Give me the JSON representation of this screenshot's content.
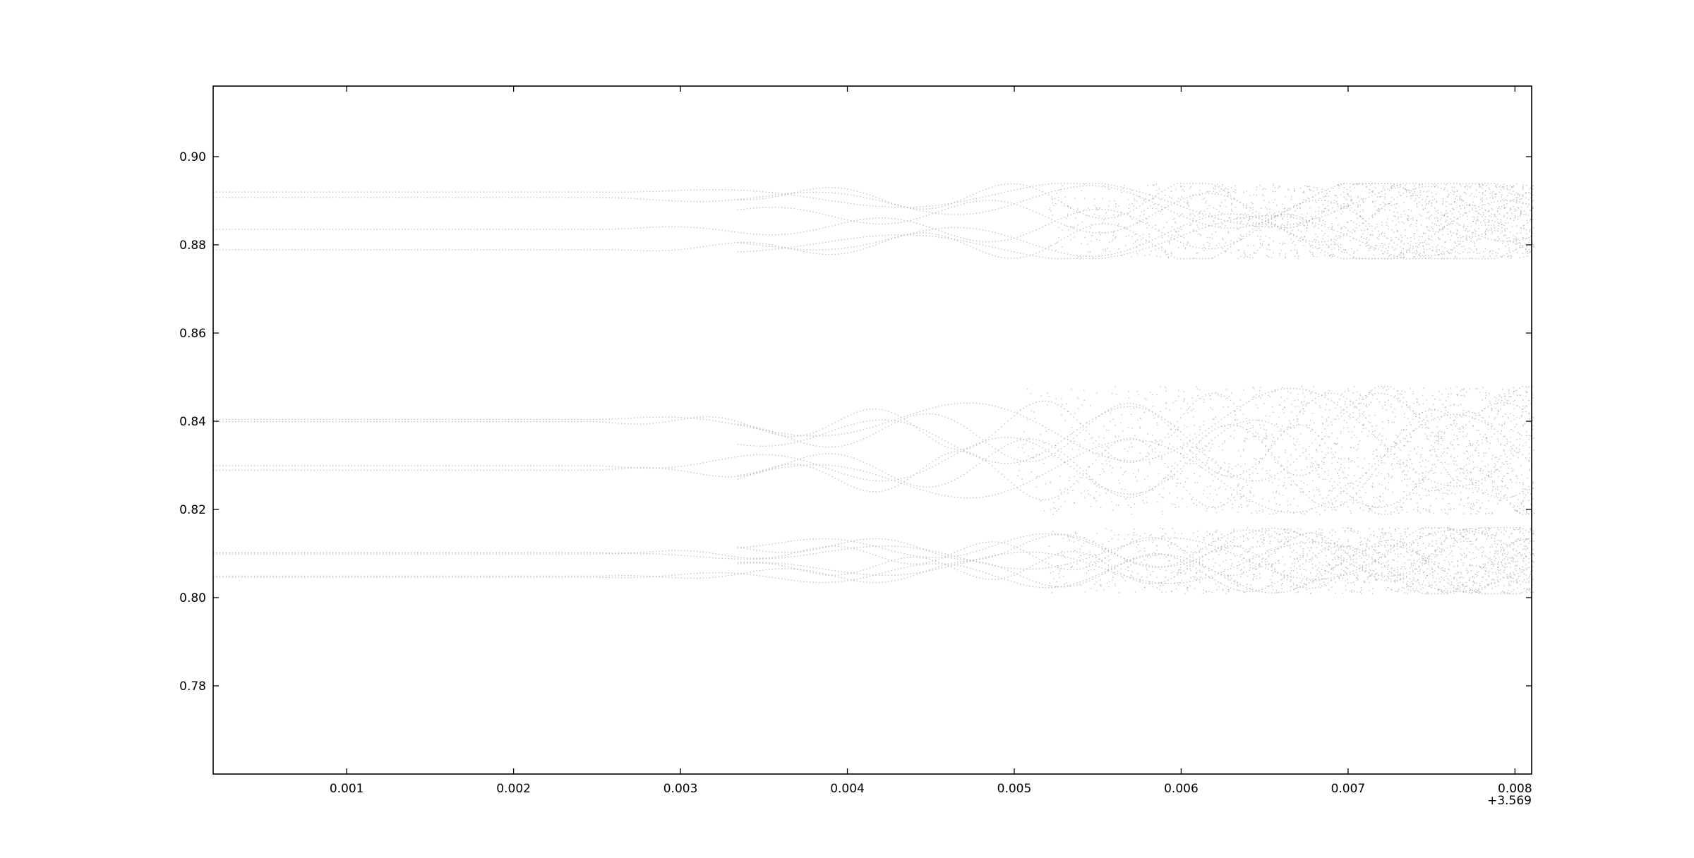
{
  "chart_data": {
    "type": "scatter",
    "title": "",
    "xlabel": "",
    "ylabel": "",
    "x_offset_label": "+3.569",
    "xlim": [
      0.0002,
      0.0081
    ],
    "ylim": [
      0.76,
      0.916
    ],
    "x_ticks": [
      {
        "value": 0.001,
        "label": "0.001"
      },
      {
        "value": 0.002,
        "label": "0.002"
      },
      {
        "value": 0.003,
        "label": "0.003"
      },
      {
        "value": 0.004,
        "label": "0.004"
      },
      {
        "value": 0.005,
        "label": "0.005"
      },
      {
        "value": 0.006,
        "label": "0.006"
      },
      {
        "value": 0.007,
        "label": "0.007"
      },
      {
        "value": 0.008,
        "label": "0.008"
      }
    ],
    "y_ticks": [
      {
        "value": 0.78,
        "label": "0.78"
      },
      {
        "value": 0.8,
        "label": "0.80"
      },
      {
        "value": 0.82,
        "label": "0.82"
      },
      {
        "value": 0.84,
        "label": "0.84"
      },
      {
        "value": 0.86,
        "label": "0.86"
      },
      {
        "value": 0.88,
        "label": "0.88"
      },
      {
        "value": 0.9,
        "label": "0.90"
      }
    ],
    "grid": false,
    "legend": "none",
    "marker_color": "#9a9a9a",
    "bands": [
      {
        "name_hint": "upper",
        "y_min": 0.877,
        "y_max": 0.894,
        "x_chaos_start": 0.0052,
        "branches": [
          0.8921,
          0.8909,
          0.8836,
          0.879
        ]
      },
      {
        "name_hint": "middle",
        "y_min": 0.819,
        "y_max": 0.848,
        "x_chaos_start": 0.005,
        "branches": [
          0.8405,
          0.83,
          0.829,
          0.84
        ]
      },
      {
        "name_hint": "lower",
        "y_min": 0.801,
        "y_max": 0.816,
        "x_chaos_start": 0.0052,
        "branches": [
          0.81,
          0.8047,
          0.805,
          0.8103
        ]
      }
    ]
  }
}
